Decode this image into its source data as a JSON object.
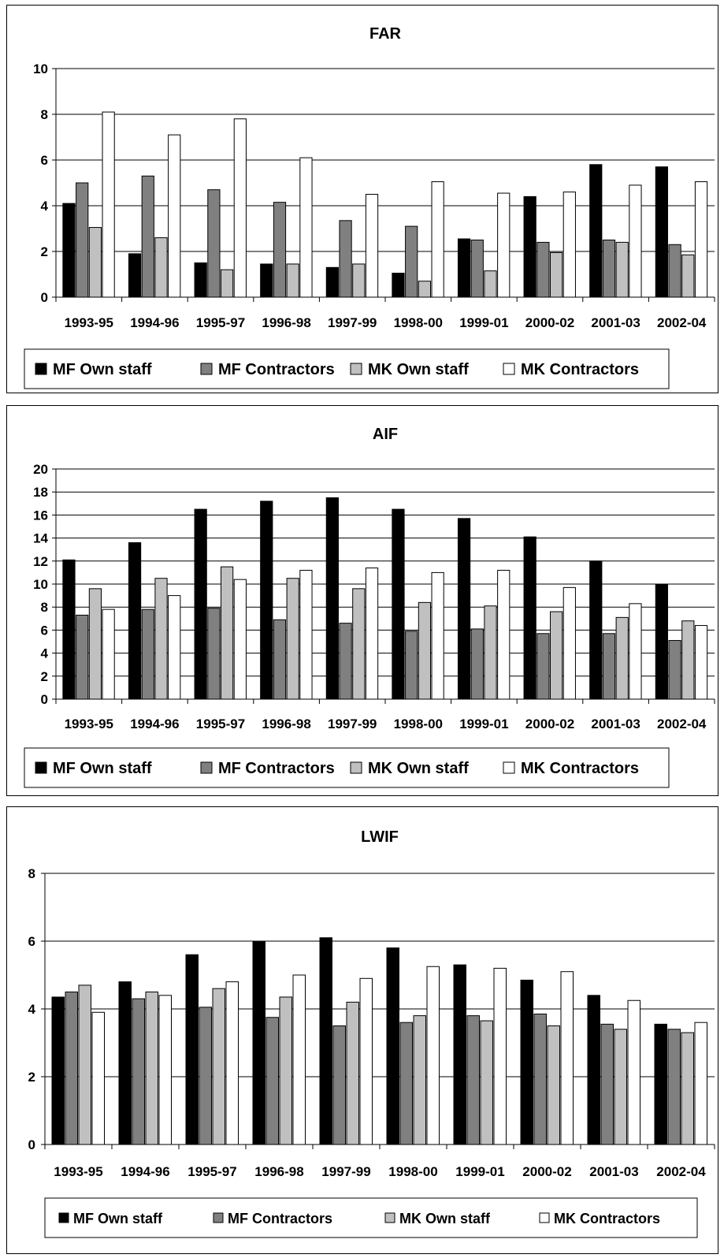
{
  "colors": {
    "mf_own": "#000000",
    "mf_contr": "#808080",
    "mk_own": "#c0c0c0",
    "mk_contr": "#ffffff",
    "grid": "#000000",
    "background": "#ffffff"
  },
  "chart_data": [
    {
      "type": "bar",
      "title": "FAR",
      "categories": [
        "1993-95",
        "1994-96",
        "1995-97",
        "1996-98",
        "1997-99",
        "1998-00",
        "1999-01",
        "2000-02",
        "2001-03",
        "2002-04"
      ],
      "ylim": [
        0,
        10
      ],
      "yticks": [
        "0",
        "2",
        "4",
        "6",
        "8",
        "10"
      ],
      "grid": true,
      "legend_position": "bottom",
      "series": [
        {
          "name": "MF Own staff",
          "values": [
            4.1,
            1.9,
            1.5,
            1.45,
            1.3,
            1.05,
            2.55,
            4.4,
            5.8,
            5.7
          ]
        },
        {
          "name": "MF Contractors",
          "values": [
            5.0,
            5.3,
            4.7,
            4.15,
            3.35,
            3.1,
            2.5,
            2.4,
            2.5,
            2.3
          ]
        },
        {
          "name": "MK Own staff",
          "values": [
            3.05,
            2.6,
            1.2,
            1.45,
            1.45,
            0.7,
            1.15,
            1.95,
            2.4,
            1.85
          ]
        },
        {
          "name": "MK Contractors",
          "values": [
            8.1,
            7.1,
            7.8,
            6.1,
            4.5,
            5.05,
            4.55,
            4.6,
            4.9,
            5.05
          ]
        }
      ]
    },
    {
      "type": "bar",
      "title": "AIF",
      "categories": [
        "1993-95",
        "1994-96",
        "1995-97",
        "1996-98",
        "1997-99",
        "1998-00",
        "1999-01",
        "2000-02",
        "2001-03",
        "2002-04"
      ],
      "ylim": [
        0,
        20
      ],
      "yticks": [
        "0",
        "2",
        "4",
        "6",
        "8",
        "10",
        "12",
        "14",
        "16",
        "18",
        "20"
      ],
      "grid": true,
      "legend_position": "bottom",
      "series": [
        {
          "name": "MF Own staff",
          "values": [
            12.1,
            13.6,
            16.5,
            17.2,
            17.5,
            16.5,
            15.7,
            14.1,
            12.0,
            10.0
          ]
        },
        {
          "name": "MF Contractors",
          "values": [
            7.3,
            7.8,
            7.9,
            6.9,
            6.6,
            5.9,
            6.1,
            5.7,
            5.7,
            5.1
          ]
        },
        {
          "name": "MK Own staff",
          "values": [
            9.6,
            10.5,
            11.5,
            10.5,
            9.6,
            8.4,
            8.1,
            7.6,
            7.1,
            6.8
          ]
        },
        {
          "name": "MK Contractors",
          "values": [
            7.8,
            9.0,
            10.4,
            11.2,
            11.4,
            11.0,
            11.2,
            9.7,
            8.3,
            6.4
          ]
        }
      ]
    },
    {
      "type": "bar",
      "title": "LWIF",
      "categories": [
        "1993-95",
        "1994-96",
        "1995-97",
        "1996-98",
        "1997-99",
        "1998-00",
        "1999-01",
        "2000-02",
        "2001-03",
        "2002-04"
      ],
      "ylim": [
        0,
        8
      ],
      "yticks": [
        "0",
        "2",
        "4",
        "6",
        "8"
      ],
      "grid": true,
      "legend_position": "bottom",
      "series": [
        {
          "name": "MF Own staff",
          "values": [
            4.35,
            4.8,
            5.6,
            6.0,
            6.1,
            5.8,
            5.3,
            4.85,
            4.4,
            3.55
          ]
        },
        {
          "name": "MF Contractors",
          "values": [
            4.5,
            4.3,
            4.05,
            3.75,
            3.5,
            3.6,
            3.8,
            3.85,
            3.55,
            3.4
          ]
        },
        {
          "name": "MK Own staff",
          "values": [
            4.7,
            4.5,
            4.6,
            4.35,
            4.2,
            3.8,
            3.65,
            3.5,
            3.4,
            3.3
          ]
        },
        {
          "name": "MK Contractors",
          "values": [
            3.9,
            4.4,
            4.8,
            5.0,
            4.9,
            5.25,
            5.2,
            5.1,
            4.25,
            3.6
          ]
        }
      ]
    }
  ]
}
